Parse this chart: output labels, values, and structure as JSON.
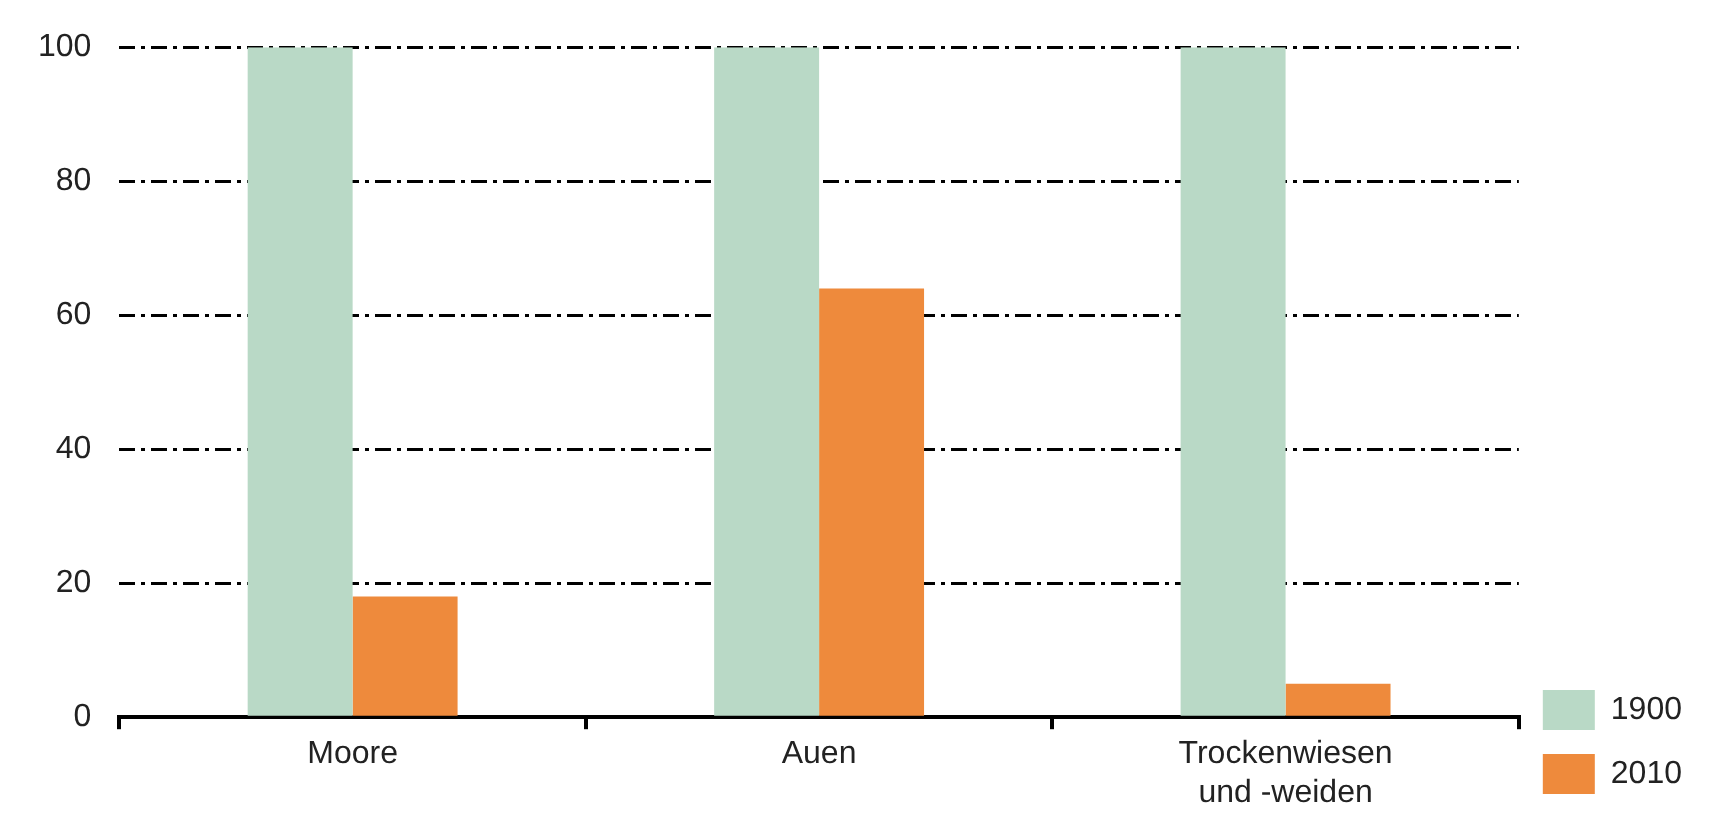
{
  "chart_data": {
    "type": "bar",
    "categories": [
      "Moore",
      "Auen",
      "Trockenwiesen und -weiden"
    ],
    "series": [
      {
        "name": "1900",
        "color": "#b9d9c6",
        "values": [
          100,
          100,
          100
        ]
      },
      {
        "name": "2010",
        "color": "#ee8a3c",
        "values": [
          18,
          64,
          5
        ]
      }
    ],
    "ylim": [
      0,
      100
    ],
    "yticks": [
      0,
      20,
      40,
      60,
      80,
      100
    ],
    "grid": "y",
    "legend": "bottom right"
  }
}
